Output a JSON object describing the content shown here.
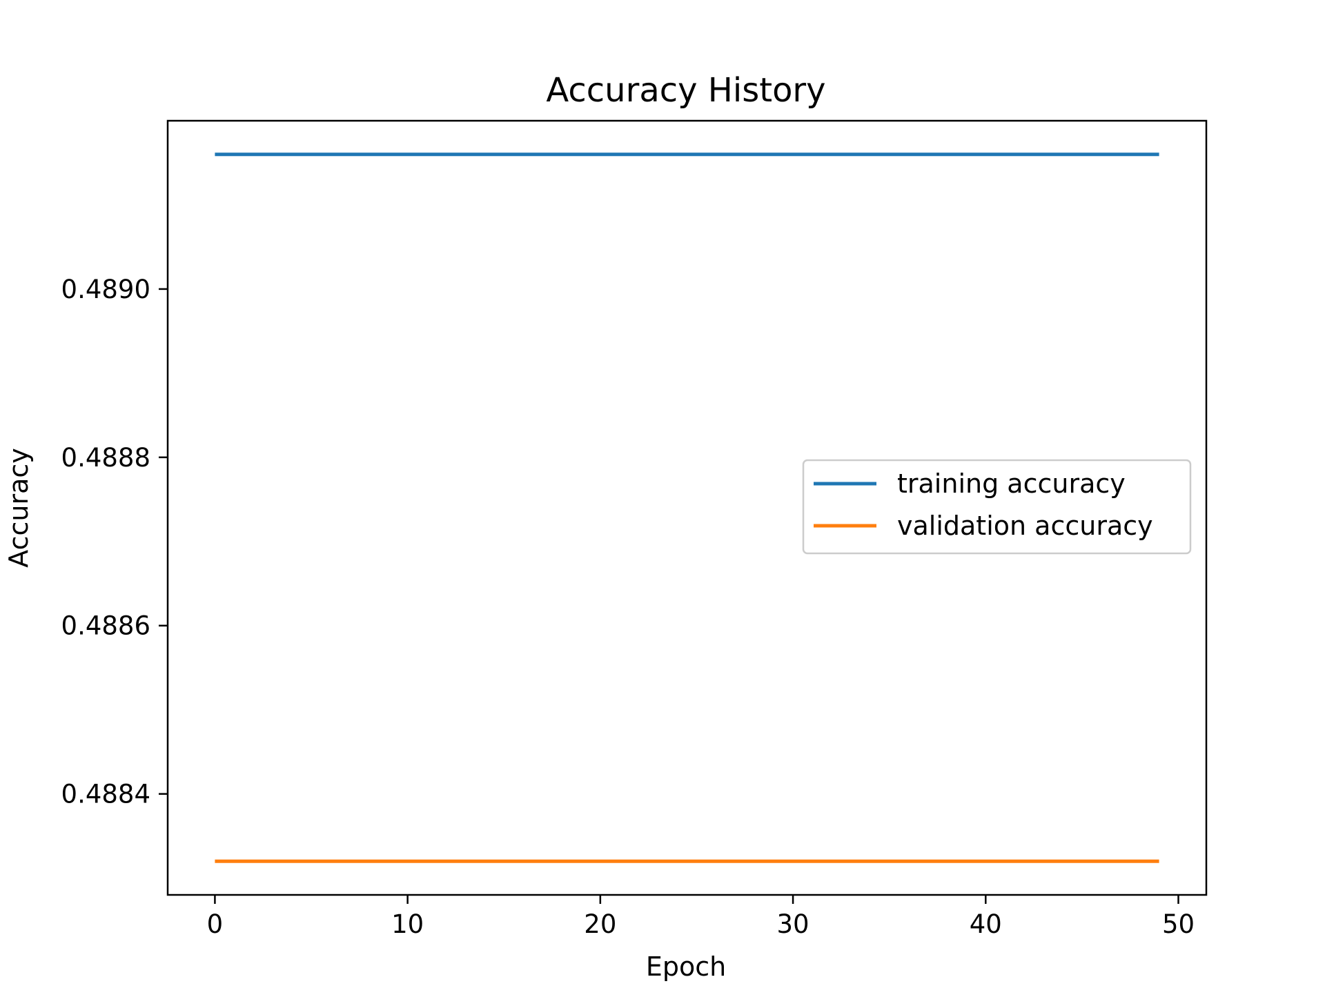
{
  "chart_data": {
    "type": "line",
    "title": "Accuracy History",
    "xlabel": "Epoch",
    "ylabel": "Accuracy",
    "xlim": [
      -2.45,
      51.45
    ],
    "ylim": [
      0.48828,
      0.4892
    ],
    "xticks": [
      0,
      10,
      20,
      30,
      40,
      50
    ],
    "xtick_labels": [
      "0",
      "10",
      "20",
      "30",
      "40",
      "50"
    ],
    "yticks": [
      0.4884,
      0.4886,
      0.4888,
      0.489
    ],
    "ytick_labels": [
      "0.4884",
      "0.4886",
      "0.4888",
      "0.4890"
    ],
    "grid": false,
    "legend_position": "center-right",
    "series": [
      {
        "name": "training accuracy",
        "color": "#1f77b4",
        "x": [
          0,
          1,
          2,
          3,
          4,
          5,
          6,
          7,
          8,
          9,
          10,
          11,
          12,
          13,
          14,
          15,
          16,
          17,
          18,
          19,
          20,
          21,
          22,
          23,
          24,
          25,
          26,
          27,
          28,
          29,
          30,
          31,
          32,
          33,
          34,
          35,
          36,
          37,
          38,
          39,
          40,
          41,
          42,
          43,
          44,
          45,
          46,
          47,
          48,
          49
        ],
        "values": [
          0.48916,
          0.48916,
          0.48916,
          0.48916,
          0.48916,
          0.48916,
          0.48916,
          0.48916,
          0.48916,
          0.48916,
          0.48916,
          0.48916,
          0.48916,
          0.48916,
          0.48916,
          0.48916,
          0.48916,
          0.48916,
          0.48916,
          0.48916,
          0.48916,
          0.48916,
          0.48916,
          0.48916,
          0.48916,
          0.48916,
          0.48916,
          0.48916,
          0.48916,
          0.48916,
          0.48916,
          0.48916,
          0.48916,
          0.48916,
          0.48916,
          0.48916,
          0.48916,
          0.48916,
          0.48916,
          0.48916,
          0.48916,
          0.48916,
          0.48916,
          0.48916,
          0.48916,
          0.48916,
          0.48916,
          0.48916,
          0.48916,
          0.48916
        ]
      },
      {
        "name": "validation accuracy",
        "color": "#ff7f0e",
        "x": [
          0,
          1,
          2,
          3,
          4,
          5,
          6,
          7,
          8,
          9,
          10,
          11,
          12,
          13,
          14,
          15,
          16,
          17,
          18,
          19,
          20,
          21,
          22,
          23,
          24,
          25,
          26,
          27,
          28,
          29,
          30,
          31,
          32,
          33,
          34,
          35,
          36,
          37,
          38,
          39,
          40,
          41,
          42,
          43,
          44,
          45,
          46,
          47,
          48,
          49
        ],
        "values": [
          0.48832,
          0.48832,
          0.48832,
          0.48832,
          0.48832,
          0.48832,
          0.48832,
          0.48832,
          0.48832,
          0.48832,
          0.48832,
          0.48832,
          0.48832,
          0.48832,
          0.48832,
          0.48832,
          0.48832,
          0.48832,
          0.48832,
          0.48832,
          0.48832,
          0.48832,
          0.48832,
          0.48832,
          0.48832,
          0.48832,
          0.48832,
          0.48832,
          0.48832,
          0.48832,
          0.48832,
          0.48832,
          0.48832,
          0.48832,
          0.48832,
          0.48832,
          0.48832,
          0.48832,
          0.48832,
          0.48832,
          0.48832,
          0.48832,
          0.48832,
          0.48832,
          0.48832,
          0.48832,
          0.48832,
          0.48832,
          0.48832,
          0.48832
        ]
      }
    ]
  }
}
